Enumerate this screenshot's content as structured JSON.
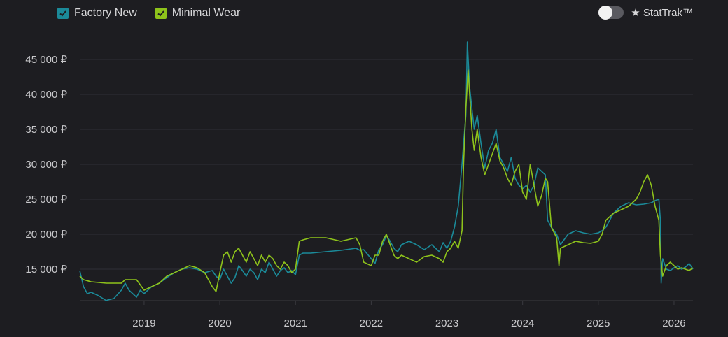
{
  "legend": {
    "items": [
      {
        "label": "Factory New",
        "color": "#1b8a99"
      },
      {
        "label": "Minimal Wear",
        "color": "#8ec31b"
      }
    ]
  },
  "stattrak": {
    "label": "★ StatTrak™",
    "enabled": false
  },
  "chart_data": {
    "type": "line",
    "xlim": [
      2018.15,
      2026.25
    ],
    "ylim": [
      10500,
      49500
    ],
    "ytick_values": [
      15000,
      20000,
      25000,
      30000,
      35000,
      40000,
      45000
    ],
    "ytick_labels": [
      "15 000 ₽",
      "20 000 ₽",
      "25 000 ₽",
      "30 000 ₽",
      "35 000 ₽",
      "40 000 ₽",
      "45 000 ₽"
    ],
    "xtick_values": [
      2019,
      2020,
      2021,
      2022,
      2023,
      2024,
      2025,
      2026
    ],
    "xtick_labels": [
      "2019",
      "2020",
      "2021",
      "2022",
      "2023",
      "2024",
      "2025",
      "2026"
    ],
    "grid": "horizontal",
    "series": [
      {
        "name": "Factory New",
        "color": "#1b8a99",
        "x": [
          2018.15,
          2018.2,
          2018.25,
          2018.3,
          2018.4,
          2018.5,
          2018.52,
          2018.6,
          2018.7,
          2018.75,
          2018.8,
          2018.85,
          2018.9,
          2018.95,
          2019.0,
          2019.1,
          2019.2,
          2019.3,
          2019.4,
          2019.5,
          2019.6,
          2019.7,
          2019.8,
          2019.9,
          2019.95,
          2020.0,
          2020.05,
          2020.1,
          2020.15,
          2020.2,
          2020.25,
          2020.3,
          2020.35,
          2020.4,
          2020.45,
          2020.5,
          2020.55,
          2020.6,
          2020.65,
          2020.7,
          2020.75,
          2020.8,
          2020.85,
          2020.9,
          2020.95,
          2021.0,
          2021.05,
          2021.1,
          2021.2,
          2021.4,
          2021.6,
          2021.8,
          2021.85,
          2021.9,
          2022.0,
          2022.05,
          2022.1,
          2022.15,
          2022.2,
          2022.25,
          2022.3,
          2022.35,
          2022.4,
          2022.5,
          2022.6,
          2022.7,
          2022.8,
          2022.9,
          2022.95,
          2023.0,
          2023.05,
          2023.1,
          2023.15,
          2023.2,
          2023.22,
          2023.25,
          2023.27,
          2023.3,
          2023.33,
          2023.36,
          2023.4,
          2023.45,
          2023.5,
          2023.55,
          2023.6,
          2023.65,
          2023.7,
          2023.75,
          2023.8,
          2023.85,
          2023.9,
          2023.95,
          2024.0,
          2024.05,
          2024.1,
          2024.15,
          2024.2,
          2024.25,
          2024.3,
          2024.33,
          2024.38,
          2024.45,
          2024.5,
          2024.6,
          2024.7,
          2024.8,
          2024.9,
          2025.0,
          2025.05,
          2025.1,
          2025.2,
          2025.3,
          2025.4,
          2025.5,
          2025.6,
          2025.7,
          2025.75,
          2025.8,
          2025.82,
          2025.83,
          2025.85,
          2025.9,
          2025.95,
          2026.0,
          2026.05,
          2026.1,
          2026.15,
          2026.2,
          2026.25
        ],
        "values": [
          14800,
          12500,
          11500,
          11700,
          11200,
          10500,
          10600,
          10800,
          12000,
          13000,
          12000,
          11500,
          11000,
          12000,
          11500,
          12500,
          13000,
          13800,
          14500,
          15000,
          15200,
          15000,
          14500,
          14800,
          14000,
          13500,
          15000,
          14000,
          13000,
          13800,
          15500,
          14800,
          14000,
          15000,
          14500,
          13500,
          15000,
          14500,
          16000,
          15000,
          14000,
          14800,
          15200,
          14500,
          14800,
          14200,
          17000,
          17300,
          17300,
          17500,
          17700,
          18000,
          17700,
          17800,
          16500,
          15800,
          17800,
          18500,
          19800,
          19000,
          18000,
          17500,
          18500,
          19000,
          18500,
          17800,
          18500,
          17500,
          18800,
          18000,
          19000,
          21000,
          24000,
          30000,
          33000,
          37000,
          47500,
          41000,
          38000,
          35000,
          37000,
          33000,
          29500,
          32000,
          33000,
          35000,
          31000,
          30000,
          29000,
          31000,
          28000,
          27000,
          26500,
          27000,
          26000,
          27000,
          29500,
          29000,
          28500,
          22000,
          21000,
          20000,
          18500,
          20000,
          20500,
          20200,
          20000,
          20200,
          20500,
          21000,
          23000,
          24000,
          24500,
          24200,
          24300,
          24500,
          24800,
          25000,
          22000,
          13000,
          16500,
          15000,
          14800,
          15200,
          15500,
          15000,
          15300,
          15800,
          15000
        ],
        "values_note": ""
      },
      {
        "name": "Minimal Wear",
        "color": "#8ec31b",
        "x": [
          2018.15,
          2018.2,
          2018.3,
          2018.5,
          2018.7,
          2018.75,
          2018.9,
          2019.0,
          2019.1,
          2019.2,
          2019.3,
          2019.4,
          2019.5,
          2019.6,
          2019.7,
          2019.8,
          2019.9,
          2019.95,
          2020.0,
          2020.05,
          2020.1,
          2020.15,
          2020.2,
          2020.25,
          2020.3,
          2020.35,
          2020.4,
          2020.45,
          2020.5,
          2020.55,
          2020.6,
          2020.65,
          2020.7,
          2020.75,
          2020.8,
          2020.85,
          2020.9,
          2020.95,
          2021.0,
          2021.05,
          2021.1,
          2021.2,
          2021.4,
          2021.6,
          2021.8,
          2021.85,
          2021.9,
          2022.0,
          2022.05,
          2022.1,
          2022.15,
          2022.2,
          2022.25,
          2022.3,
          2022.35,
          2022.4,
          2022.5,
          2022.6,
          2022.7,
          2022.8,
          2022.9,
          2022.95,
          2023.0,
          2023.05,
          2023.1,
          2023.15,
          2023.2,
          2023.22,
          2023.25,
          2023.28,
          2023.3,
          2023.33,
          2023.36,
          2023.4,
          2023.45,
          2023.5,
          2023.55,
          2023.6,
          2023.65,
          2023.7,
          2023.75,
          2023.8,
          2023.85,
          2023.9,
          2023.95,
          2024.0,
          2024.05,
          2024.1,
          2024.15,
          2024.2,
          2024.25,
          2024.3,
          2024.33,
          2024.38,
          2024.45,
          2024.48,
          2024.5,
          2024.6,
          2024.7,
          2024.8,
          2024.9,
          2025.0,
          2025.05,
          2025.1,
          2025.2,
          2025.3,
          2025.4,
          2025.5,
          2025.55,
          2025.6,
          2025.65,
          2025.7,
          2025.75,
          2025.8,
          2025.82,
          2025.85,
          2025.9,
          2025.95,
          2026.0,
          2026.05,
          2026.1,
          2026.15,
          2026.2,
          2026.25
        ],
        "values": [
          14000,
          13500,
          13200,
          13000,
          13000,
          13500,
          13500,
          12000,
          12500,
          13000,
          14000,
          14500,
          15000,
          15500,
          15200,
          14500,
          12500,
          11800,
          14500,
          17000,
          17500,
          16000,
          17500,
          18000,
          17000,
          16000,
          17500,
          16500,
          15500,
          17000,
          16000,
          17000,
          16500,
          15500,
          15000,
          16000,
          15500,
          14500,
          15000,
          19000,
          19200,
          19500,
          19500,
          19000,
          19500,
          18500,
          16000,
          15500,
          17000,
          17000,
          19000,
          20000,
          18500,
          17000,
          16500,
          17000,
          16500,
          16000,
          16800,
          17000,
          16500,
          16000,
          17500,
          18000,
          19000,
          18000,
          20500,
          30000,
          38000,
          43500,
          40000,
          35000,
          32000,
          35000,
          31000,
          28500,
          30000,
          31500,
          33000,
          30500,
          29500,
          28000,
          27000,
          29000,
          30000,
          26000,
          25000,
          30000,
          27000,
          24000,
          25500,
          28000,
          27500,
          21000,
          19500,
          15500,
          18000,
          18500,
          19000,
          18800,
          18700,
          19000,
          20000,
          22000,
          23000,
          23500,
          24000,
          25000,
          26000,
          27500,
          28500,
          27000,
          24000,
          22000,
          17000,
          14000,
          15500,
          16000,
          15500,
          15000,
          15200,
          15000,
          14800,
          15200
        ],
        "values_note": ""
      }
    ]
  }
}
